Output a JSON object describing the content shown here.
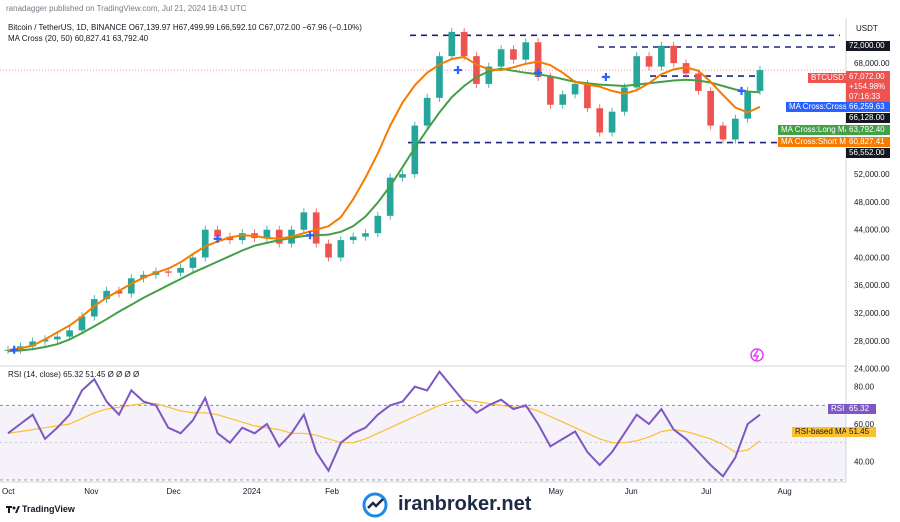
{
  "header": {
    "publisher": "ranadagger published on TradingView.com, Jul 21, 2024 16:43 UTC",
    "symbol_line": "Bitcoin / TetherUS, 1D, BINANCE O67,139.97 H67,499.99 L66,592.10 C67,072.00 −67.96 (−0.10%)",
    "ma_line": "MA Cross (20, 50) 60,827.41 63,792.40",
    "rsi_line": "RSI (14, close) 65.32 51.45 Ø Ø Ø Ø",
    "currency": "USDT"
  },
  "labels": {
    "symbol": "BTCUSDT",
    "price": "67,072.00",
    "change": "+154.98%",
    "countdown": "07:16:33",
    "ma_cross": "MA Cross:Cross",
    "ma_cross_value": "66,259.63",
    "level_mid": "66,128.00",
    "ma_long": "MA Cross:Long MA",
    "ma_long_value": "63,792.40",
    "ma_short": "MA Cross:Short MA",
    "ma_short_value": "60,827.41",
    "level_low": "56,552.00",
    "level_high": "72,000.00",
    "rsi": "RSI",
    "rsi_value": "65.32",
    "rsi_ma": "RSI-based MA",
    "rsi_ma_value": "51.45"
  },
  "brand": "TradingView",
  "watermark": "iranbroker.net",
  "colors": {
    "up": "#26a69a",
    "down": "#ef5350",
    "short_ma": "#f57c00",
    "long_ma": "#43a047",
    "rsi": "#7e57c2",
    "rsi_ma": "#fbc02d",
    "level": "#1a237e"
  },
  "chart_data": [
    {
      "type": "line",
      "title": "",
      "xlabel": "",
      "ylabel": "",
      "x_ticks": [
        "Oct",
        "Nov",
        "Dec",
        "2024",
        "Feb",
        "May",
        "Jun",
        "Jul",
        "Aug"
      ],
      "y_ticks": [
        24000,
        28000,
        32000,
        36000,
        40000,
        44000,
        48000,
        52000,
        60000,
        68000
      ],
      "ylim": [
        23500,
        74500
      ],
      "horizontal_levels": [
        72000,
        66128,
        56552
      ],
      "series": [
        {
          "values": [
            26700,
            27200,
            27900,
            28200,
            28600,
            29500,
            31500,
            34000,
            35200,
            34800,
            37000,
            37500,
            38000,
            37800,
            38500,
            40000,
            44000,
            43000,
            42500,
            43500,
            42800,
            44000,
            42000,
            44000,
            46500,
            42000,
            40000,
            42500,
            43000,
            43500,
            46000,
            51500,
            52000,
            59000,
            63000,
            69000,
            72500,
            69000,
            65000,
            67500,
            70000,
            68500,
            71000,
            66000,
            62000,
            63500,
            65000,
            61500,
            58000,
            61000,
            64500,
            69000,
            67500,
            70500,
            68000,
            66500,
            64000,
            59000,
            57000,
            60000,
            64000,
            67000
          ]
        },
        {
          "values": [
            26600,
            26900,
            27300,
            28200,
            29200,
            30200,
            31500,
            33000,
            34200,
            35200,
            36200,
            37100,
            37800,
            38400,
            39300,
            40500,
            41600,
            42300,
            42900,
            43200,
            43100,
            42800,
            42700,
            43000,
            43500,
            44000,
            44500,
            45800,
            48400,
            51500,
            55000,
            59000,
            62300,
            64800,
            66600,
            67800,
            68600,
            68900,
            67800,
            67100,
            67000,
            67400,
            67900,
            68200,
            67700,
            66600,
            65300,
            64900,
            64600,
            64000,
            63600,
            64100,
            65100,
            66400,
            67100,
            67400,
            66900,
            65300,
            63400,
            61600,
            60900,
            61700
          ]
        },
        {
          "values": [
            26500,
            26600,
            26800,
            27100,
            27500,
            28200,
            29100,
            30100,
            31100,
            32200,
            33200,
            34200,
            35100,
            36000,
            36900,
            37800,
            38600,
            39400,
            40200,
            41000,
            41700,
            42100,
            42500,
            42800,
            43100,
            43200,
            43300,
            43700,
            44500,
            45900,
            47900,
            50300,
            53000,
            55800,
            58400,
            60900,
            63100,
            64700,
            66000,
            66800,
            67200,
            66900,
            66600,
            66400,
            66100,
            65700,
            65300,
            65100,
            64900,
            64800,
            64700,
            64900,
            65100,
            65300,
            65500,
            65600,
            65500,
            65200,
            64700,
            64200,
            63900,
            63800
          ]
        }
      ]
    },
    {
      "type": "line",
      "title": "",
      "y_ticks": [
        40,
        60,
        80
      ],
      "ylim": [
        30,
        90
      ],
      "bands": [
        30,
        70
      ],
      "series": [
        {
          "values": [
            55,
            60,
            65,
            52,
            58,
            65,
            78,
            84,
            72,
            65,
            78,
            72,
            70,
            58,
            55,
            62,
            74,
            55,
            50,
            58,
            55,
            60,
            48,
            55,
            65,
            45,
            35,
            50,
            55,
            58,
            65,
            70,
            72,
            80,
            78,
            88,
            80,
            72,
            66,
            70,
            73,
            68,
            70,
            60,
            48,
            52,
            56,
            45,
            38,
            45,
            55,
            65,
            60,
            68,
            57,
            52,
            45,
            38,
            32,
            42,
            60,
            65
          ]
        },
        {
          "values": [
            55,
            56,
            57,
            58,
            59,
            60,
            63,
            66,
            68,
            69,
            70,
            71,
            71,
            69,
            67,
            66,
            66,
            65,
            63,
            61,
            59,
            58,
            57,
            55,
            55,
            54,
            52,
            50,
            50,
            52,
            55,
            58,
            61,
            64,
            67,
            70,
            72,
            73,
            72,
            71,
            70,
            69,
            69,
            67,
            64,
            61,
            58,
            55,
            52,
            50,
            50,
            51,
            53,
            56,
            57,
            56,
            54,
            52,
            49,
            45,
            46,
            51
          ]
        }
      ]
    }
  ]
}
